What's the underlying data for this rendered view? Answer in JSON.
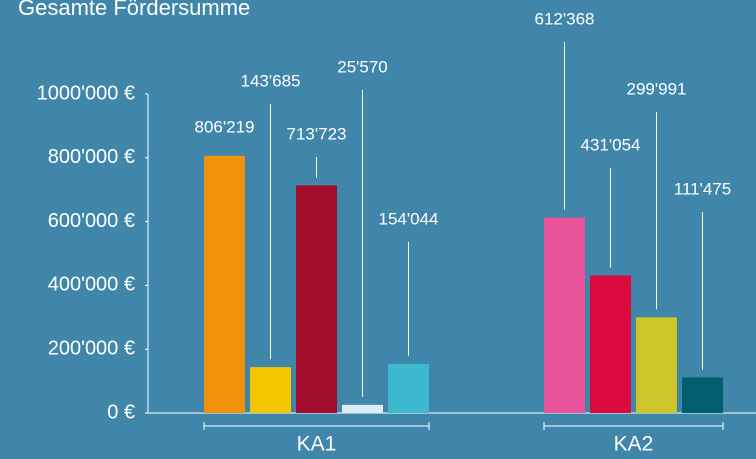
{
  "chart_data": {
    "type": "bar",
    "title": "Gesamte Fördersumme",
    "groups": [
      {
        "label": "KA1",
        "values": [
          806219,
          143685,
          713723,
          25570,
          154044
        ],
        "value_labels": [
          "806'219",
          "143'685",
          "713'723",
          "25'570",
          "154'044"
        ],
        "colors": [
          "#f0920a",
          "#f4c700",
          "#a30d2c",
          "#d8edf4",
          "#3cb8cf"
        ]
      },
      {
        "label": "KA2",
        "values": [
          612368,
          431054,
          299991,
          111475
        ],
        "value_labels": [
          "612'368",
          "431'054",
          "299'991",
          "111'475"
        ],
        "colors": [
          "#e8539a",
          "#db0a3f",
          "#cec52b",
          "#005e6d"
        ]
      }
    ],
    "ylim": [
      0,
      1000000
    ],
    "yticks": [
      {
        "value": 0,
        "label": "0 €"
      },
      {
        "value": 200000,
        "label": "200'000 €"
      },
      {
        "value": 400000,
        "label": "400'000 €"
      },
      {
        "value": 600000,
        "label": "600'000 €"
      },
      {
        "value": 800000,
        "label": "800'000 €"
      },
      {
        "value": 1000000,
        "label": "1000'000 €"
      }
    ]
  }
}
